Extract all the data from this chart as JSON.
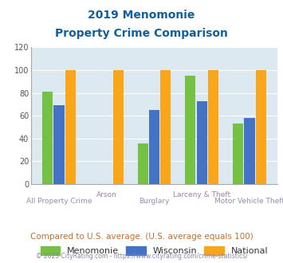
{
  "title_line1": "2019 Menomonie",
  "title_line2": "Property Crime Comparison",
  "categories": [
    "All Property Crime",
    "Arson",
    "Burglary",
    "Larceny & Theft",
    "Motor Vehicle Theft"
  ],
  "menomonie": [
    81,
    0,
    36,
    95,
    53
  ],
  "wisconsin": [
    69,
    0,
    65,
    73,
    58
  ],
  "national": [
    100,
    100,
    100,
    100,
    100
  ],
  "color_menomonie": "#76c043",
  "color_wisconsin": "#4472c4",
  "color_national": "#faa61a",
  "ylim": [
    0,
    120
  ],
  "yticks": [
    0,
    20,
    40,
    60,
    80,
    100,
    120
  ],
  "bg_color": "#dce9f0",
  "title_color": "#1060a0",
  "xlabel_color_bottom": "#9090b0",
  "xlabel_color_top": "#a080a0",
  "legend_label_menomonie": "Menomonie",
  "legend_label_wisconsin": "Wisconsin",
  "legend_label_national": "National",
  "footnote1": "Compared to U.S. average. (U.S. average equals 100)",
  "footnote2": "© 2025 CityRating.com - https://www.cityrating.com/crime-statistics/",
  "footnote1_color": "#c07030",
  "footnote2_color": "#8888aa",
  "bar_width": 0.22,
  "bar_gap": 0.02
}
